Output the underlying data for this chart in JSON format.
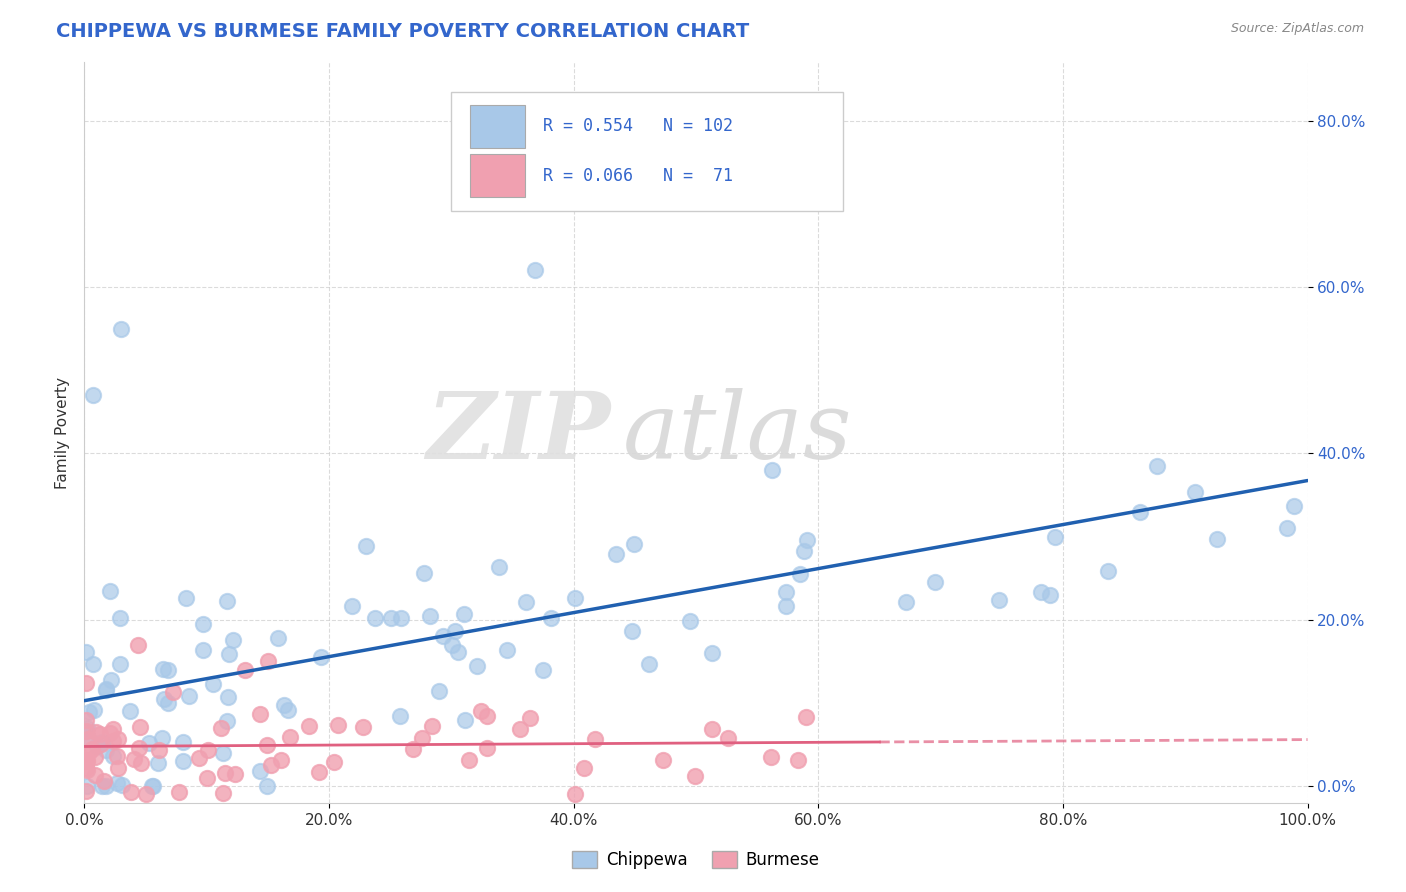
{
  "title": "CHIPPEWA VS BURMESE FAMILY POVERTY CORRELATION CHART",
  "source": "Source: ZipAtlas.com",
  "ylabel": "Family Poverty",
  "xlim": [
    0.0,
    1.0
  ],
  "ylim": [
    -0.02,
    0.87
  ],
  "x_ticks": [
    0.0,
    0.2,
    0.4,
    0.6,
    0.8,
    1.0
  ],
  "x_tick_labels": [
    "0.0%",
    "20.0%",
    "40.0%",
    "60.0%",
    "80.0%",
    "100.0%"
  ],
  "y_ticks": [
    0.0,
    0.2,
    0.4,
    0.6,
    0.8
  ],
  "y_tick_labels": [
    "0.0%",
    "20.0%",
    "40.0%",
    "60.0%",
    "80.0%"
  ],
  "chippewa_color": "#a8c8e8",
  "burmese_color": "#f0a0b0",
  "chippewa_line_color": "#2060b0",
  "burmese_line_color": "#e06080",
  "R_chippewa": 0.554,
  "N_chippewa": 102,
  "R_burmese": 0.066,
  "N_burmese": 71,
  "watermark_zip": "ZIP",
  "watermark_atlas": "atlas",
  "background_color": "#ffffff",
  "grid_color": "#cccccc",
  "title_color": "#3366cc",
  "legend_text_color": "#3366cc"
}
